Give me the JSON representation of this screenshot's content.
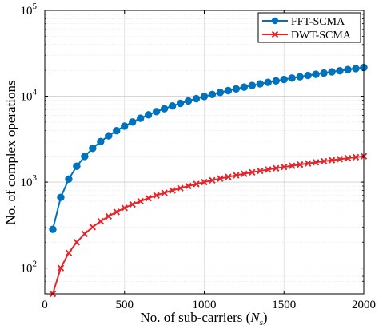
{
  "chart_data": {
    "type": "line",
    "xlabel": "No.  of sub-carriers (",
    "xlabel_var": "N",
    "xlabel_sub": "s",
    "xlabel_end": ")",
    "ylabel": "No. of complex operations",
    "xlim": [
      0,
      2000
    ],
    "ylim": [
      50,
      100000
    ],
    "y_scale": "log",
    "grid": true,
    "legend_position": "top-right",
    "x_ticks": [
      "0",
      "500",
      "1000",
      "1500",
      "2000"
    ],
    "y_ticks": [
      {
        "value": 100,
        "base": "10",
        "exp": "2"
      },
      {
        "value": 1000,
        "base": "10",
        "exp": "3"
      },
      {
        "value": 10000,
        "base": "10",
        "exp": "4"
      },
      {
        "value": 100000,
        "base": "10",
        "exp": "5"
      }
    ],
    "x": [
      50,
      100,
      150,
      200,
      250,
      300,
      350,
      400,
      450,
      500,
      550,
      600,
      650,
      700,
      750,
      800,
      850,
      900,
      950,
      1000,
      1050,
      1100,
      1150,
      1200,
      1250,
      1300,
      1350,
      1400,
      1450,
      1500,
      1550,
      1600,
      1650,
      1700,
      1750,
      1800,
      1850,
      1900,
      1950,
      2000
    ],
    "series": [
      {
        "name": "FFT-SCMA",
        "color": "#0072BD",
        "marker": "circle",
        "values": [
          282,
          664,
          1084,
          1529,
          1993,
          2473,
          2964,
          3465,
          3974,
          4491,
          5015,
          5544,
          6078,
          6617,
          7160,
          7707,
          8258,
          8812,
          9369,
          9929,
          10492,
          11058,
          11626,
          12197,
          12770,
          13345,
          13922,
          14502,
          15083,
          15667,
          16252,
          16839,
          17428,
          18019,
          18611,
          19205,
          19800,
          20397,
          20995,
          21595
        ]
      },
      {
        "name": "DWT-SCMA",
        "color": "#E3262C",
        "marker": "x",
        "values": [
          50,
          100,
          150,
          200,
          250,
          300,
          350,
          400,
          450,
          500,
          550,
          600,
          650,
          700,
          750,
          800,
          850,
          900,
          950,
          1000,
          1050,
          1100,
          1150,
          1200,
          1250,
          1300,
          1350,
          1400,
          1450,
          1500,
          1550,
          1600,
          1650,
          1700,
          1750,
          1800,
          1850,
          1900,
          1950,
          2000
        ]
      }
    ]
  }
}
